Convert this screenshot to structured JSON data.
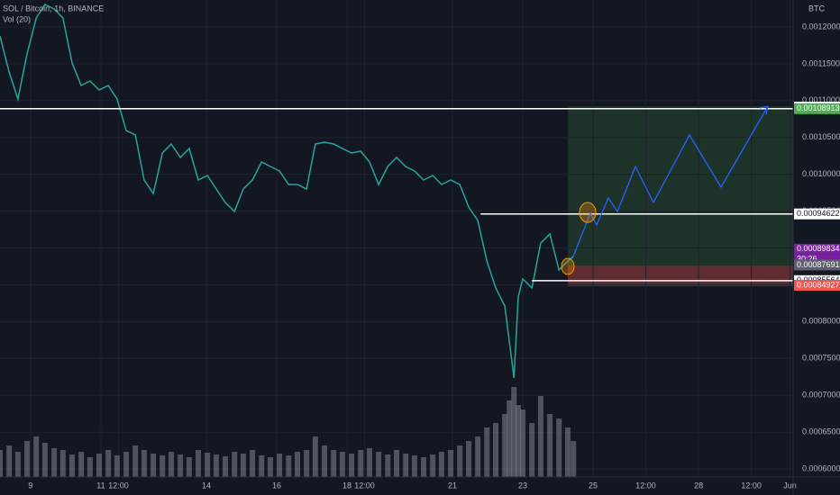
{
  "chart_data": {
    "type": "line",
    "title": "SOL / Bitcoin, 1h, BINANCE",
    "volume_label": "Vol (20)",
    "currency": "BTC",
    "countdown": "30:26",
    "xlim": [
      8.13,
      30.69
    ],
    "ylim": [
      0.000589,
      0.0012367
    ],
    "xticks": [
      {
        "value": 9,
        "label": "9"
      },
      {
        "value": 11,
        "label": "11"
      },
      {
        "value": 11.5,
        "label": "12:00"
      },
      {
        "value": 14,
        "label": "14"
      },
      {
        "value": 16,
        "label": "16"
      },
      {
        "value": 18,
        "label": "18"
      },
      {
        "value": 18.5,
        "label": "12:00"
      },
      {
        "value": 21,
        "label": "21"
      },
      {
        "value": 23,
        "label": "23"
      },
      {
        "value": 25,
        "label": "25"
      },
      {
        "value": 26.5,
        "label": "12:00"
      },
      {
        "value": 28,
        "label": "28"
      },
      {
        "value": 29.5,
        "label": "12:00"
      },
      {
        "value": 30.6,
        "label": "Jun"
      }
    ],
    "yticks": [
      {
        "value": 0.0012,
        "label": "0.00120000"
      },
      {
        "value": 0.00115,
        "label": "0.00115000"
      },
      {
        "value": 0.0011,
        "label": "0.00110000"
      },
      {
        "value": 0.00105,
        "label": "0.00105000"
      },
      {
        "value": 0.001,
        "label": "0.00100000"
      },
      {
        "value": 0.00095,
        "label": "0.00095000"
      },
      {
        "value": 0.0009,
        "label": "0.00090000"
      },
      {
        "value": 0.00085,
        "label": "0.00085000"
      },
      {
        "value": 0.0008,
        "label": "0.00080000"
      },
      {
        "value": 0.00075,
        "label": "0.00075000"
      },
      {
        "value": 0.0007,
        "label": "0.00070000"
      },
      {
        "value": 0.00065,
        "label": "0.00065000"
      },
      {
        "value": 0.0006,
        "label": "0.00060000"
      }
    ],
    "x": [
      8.13,
      8.39,
      8.64,
      8.9,
      9.16,
      9.41,
      9.67,
      9.92,
      10.18,
      10.44,
      10.69,
      10.95,
      11.21,
      11.46,
      11.72,
      11.98,
      12.23,
      12.49,
      12.75,
      13.0,
      13.26,
      13.51,
      13.77,
      14.03,
      14.28,
      14.54,
      14.8,
      15.05,
      15.31,
      15.57,
      15.82,
      16.08,
      16.34,
      16.59,
      16.85,
      17.1,
      17.36,
      17.62,
      17.87,
      18.13,
      18.39,
      18.64,
      18.9,
      19.16,
      19.41,
      19.67,
      19.92,
      20.18,
      20.44,
      20.69,
      20.95,
      21.21,
      21.46,
      21.72,
      21.98,
      22.23,
      22.49,
      22.62,
      22.75,
      22.87,
      23.0,
      23.26,
      23.51,
      23.77,
      24.03,
      24.28,
      24.44
    ],
    "series": [
      {
        "name": "SOL / Bitcoin",
        "color": "#26a69a",
        "values": [
          0.0011878,
          0.0011389,
          0.0011023,
          0.0011634,
          0.0012123,
          0.0012306,
          0.0012245,
          0.0012123,
          0.0011512,
          0.0011206,
          0.0011267,
          0.0011145,
          0.0011206,
          0.0011023,
          0.0010595,
          0.0010534,
          0.0009923,
          0.000974,
          0.001029,
          0.0010412,
          0.0010229,
          0.0010351,
          0.0009923,
          0.0009984,
          0.0009801,
          0.0009617,
          0.0009495,
          0.0009801,
          0.0009923,
          0.0010167,
          0.0010106,
          0.0010045,
          0.0009862,
          0.0009862,
          0.0009801,
          0.0010412,
          0.0010436,
          0.0010412,
          0.0010351,
          0.001029,
          0.0010314,
          0.0010167,
          0.0009862,
          0.0010106,
          0.0010229,
          0.0010106,
          0.0010045,
          0.0009923,
          0.0009984,
          0.0009862,
          0.0009923,
          0.0009862,
          0.0009556,
          0.0009373,
          0.0008823,
          0.0008457,
          0.0008212,
          0.0007723,
          0.0007235,
          0.0008335,
          0.0008579,
          0.0008457,
          0.0009066,
          0.000919,
          0.0008701,
          0.0008823,
          0.0008884
        ]
      },
      {
        "name": "Vol",
        "color": "#787b86",
        "values": [
          30,
          35,
          28,
          40,
          45,
          38,
          32,
          30,
          25,
          28,
          22,
          26,
          30,
          24,
          28,
          35,
          30,
          26,
          24,
          28,
          25,
          22,
          30,
          27,
          25,
          23,
          28,
          26,
          30,
          24,
          22,
          26,
          24,
          28,
          30,
          45,
          35,
          30,
          28,
          26,
          30,
          32,
          28,
          25,
          30,
          26,
          24,
          22,
          25,
          28,
          30,
          35,
          40,
          45,
          55,
          60,
          70,
          85,
          100,
          80,
          75,
          60,
          90,
          70,
          65,
          55,
          40
        ]
      }
    ],
    "levels": [
      {
        "value": 0.00109131,
        "color": "#ffffff",
        "from": 8.13
      },
      {
        "value": 0.00108913,
        "color": "#4caf50",
        "from": 8.13
      },
      {
        "value": 0.00094622,
        "color": "#ffffff",
        "from": 21.8
      },
      {
        "value": 0.00089834,
        "color": "#7b1fa2",
        "from": 24.44
      },
      {
        "value": 0.00087691,
        "color": "#5d606b",
        "from": 24.44
      },
      {
        "value": 0.00085564,
        "color": "#ffffff",
        "from": 23.26
      },
      {
        "value": 0.00084927,
        "color": "#ef5350",
        "from": 24.44
      }
    ]
  }
}
